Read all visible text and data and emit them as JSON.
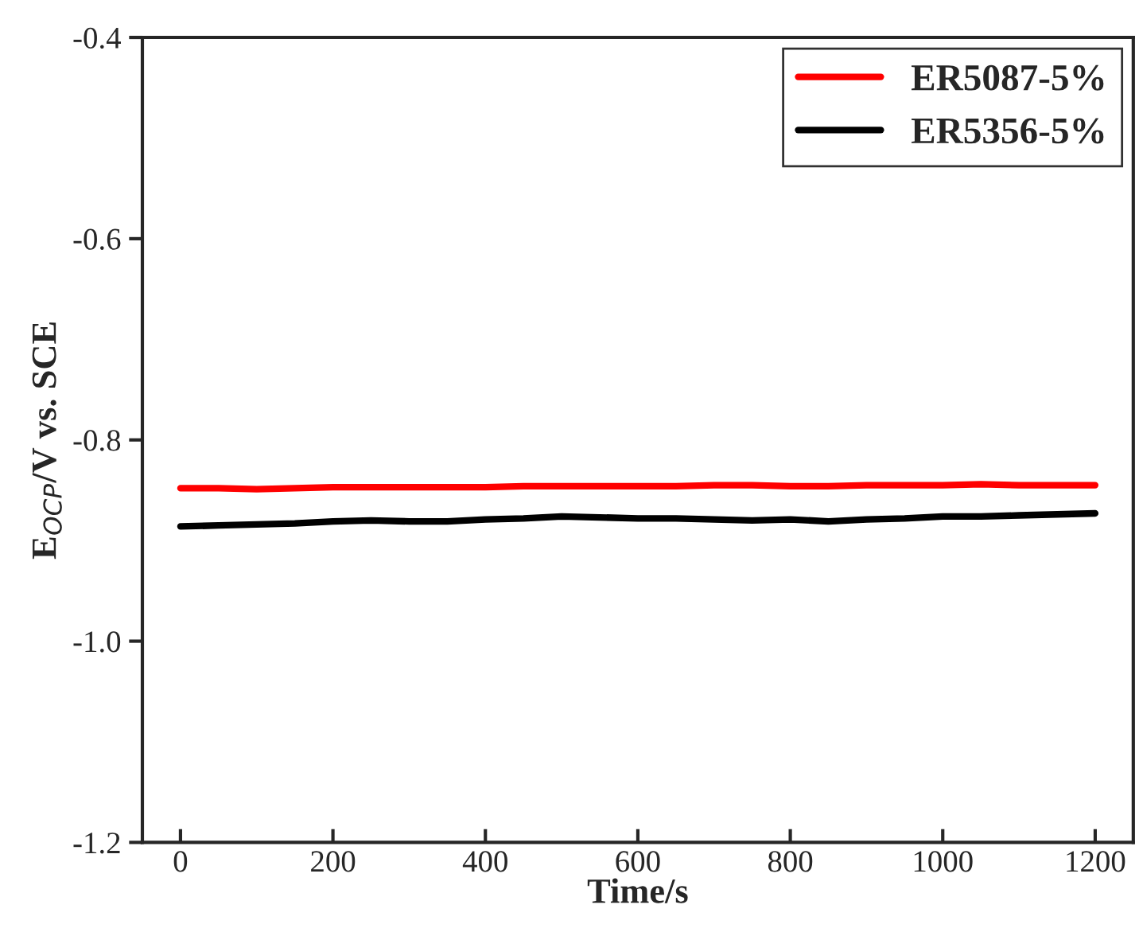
{
  "chart_data": {
    "type": "line",
    "xlabel": "Time/s",
    "ylabel": "E$_{OCP}$/V vs. SCE",
    "x": [
      0,
      50,
      100,
      150,
      200,
      250,
      300,
      350,
      400,
      450,
      500,
      550,
      600,
      650,
      700,
      750,
      800,
      850,
      900,
      950,
      1000,
      1050,
      1100,
      1150,
      1200
    ],
    "series": [
      {
        "name": "ER5087-5%",
        "color": "#ff0000",
        "values": [
          -0.848,
          -0.848,
          -0.849,
          -0.848,
          -0.847,
          -0.847,
          -0.847,
          -0.847,
          -0.847,
          -0.846,
          -0.846,
          -0.846,
          -0.846,
          -0.846,
          -0.845,
          -0.845,
          -0.846,
          -0.846,
          -0.845,
          -0.845,
          -0.845,
          -0.844,
          -0.845,
          -0.845,
          -0.845
        ]
      },
      {
        "name": "ER5356-5%",
        "color": "#000000",
        "values": [
          -0.886,
          -0.885,
          -0.884,
          -0.883,
          -0.881,
          -0.88,
          -0.881,
          -0.881,
          -0.879,
          -0.878,
          -0.876,
          -0.877,
          -0.878,
          -0.878,
          -0.879,
          -0.88,
          -0.879,
          -0.881,
          -0.879,
          -0.878,
          -0.876,
          -0.876,
          -0.875,
          -0.874,
          -0.873
        ]
      }
    ],
    "xlim": [
      -50,
      1250
    ],
    "ylim": [
      -1.2,
      -0.4
    ],
    "xticks": [
      0,
      200,
      400,
      600,
      800,
      1000,
      1200
    ],
    "yticks": [
      {
        "value": -1.2,
        "label": "-1.2"
      },
      {
        "value": -1.0,
        "label": "-1.0"
      },
      {
        "value": -0.8,
        "label": "-0.8"
      },
      {
        "value": -0.6,
        "label": "-0.6"
      },
      {
        "value": -0.4,
        "label": "-0.4"
      }
    ],
    "legend": "top right",
    "grid": false,
    "marker": "none",
    "line_style": "solid"
  }
}
